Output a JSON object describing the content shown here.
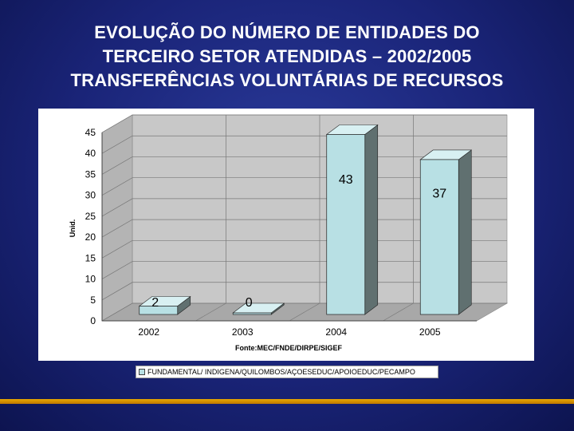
{
  "title_lines": [
    "EVOLUÇÃO DO NÚMERO DE ENTIDADES DO",
    "TERCEIRO SETOR ATENDIDAS – 2002/2005",
    "TRANSFERÊNCIAS VOLUNTÁRIAS DE RECURSOS"
  ],
  "chart_data": {
    "type": "bar",
    "categories": [
      "2002",
      "2003",
      "2004",
      "2005"
    ],
    "series": [
      {
        "name": "FUNDAMENTAL/ INDIGENA/QUILOMBOS/AÇOESEDUC/APOIOEDUC/PECAMPO",
        "values": [
          2,
          0,
          43,
          37
        ]
      }
    ],
    "data_labels": [
      "2",
      "0",
      "43",
      "37"
    ],
    "ylabel": "Unid.",
    "xlabel": "Fonte:MEC/FNDE/DIRPE/SIGEF",
    "ylim": [
      0,
      45
    ],
    "yticks": [
      "0",
      "5",
      "10",
      "15",
      "20",
      "25",
      "30",
      "35",
      "40",
      "45"
    ],
    "grid": true,
    "legend_position": "bottom",
    "bar_color": "#b8e0e4",
    "bar_side_color": "#607070"
  },
  "colors": {
    "background": "#1a2478",
    "accent_rule": "#e0a000",
    "title": "#ffffff"
  }
}
